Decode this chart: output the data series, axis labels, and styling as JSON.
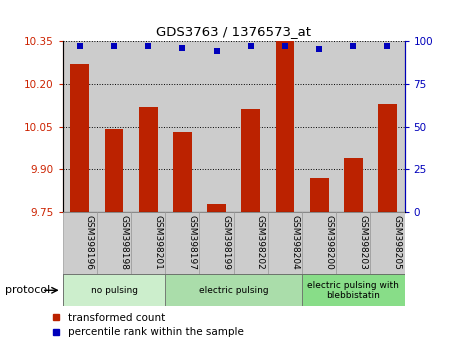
{
  "title": "GDS3763 / 1376573_at",
  "samples": [
    "GSM398196",
    "GSM398198",
    "GSM398201",
    "GSM398197",
    "GSM398199",
    "GSM398202",
    "GSM398204",
    "GSM398200",
    "GSM398203",
    "GSM398205"
  ],
  "red_values": [
    10.27,
    10.04,
    10.12,
    10.03,
    9.78,
    10.11,
    10.35,
    9.87,
    9.94,
    10.13
  ],
  "blue_values": [
    97,
    97,
    97,
    96,
    94,
    97,
    97,
    95,
    97,
    97
  ],
  "ylim_left": [
    9.75,
    10.35
  ],
  "ylim_right": [
    0,
    100
  ],
  "yticks_left": [
    9.75,
    9.9,
    10.05,
    10.2,
    10.35
  ],
  "yticks_right": [
    0,
    25,
    50,
    75,
    100
  ],
  "groups": [
    {
      "label": "no pulsing",
      "start": 0,
      "end": 3,
      "color": "#cceecc"
    },
    {
      "label": "electric pulsing",
      "start": 3,
      "end": 7,
      "color": "#aaddaa"
    },
    {
      "label": "electric pulsing with\nblebbistatin",
      "start": 7,
      "end": 10,
      "color": "#88dd88"
    }
  ],
  "bar_color": "#bb2200",
  "dot_color": "#0000bb",
  "tick_label_color_left": "#cc2200",
  "tick_label_color_right": "#0000cc",
  "cell_bg_color": "#cccccc",
  "protocol_label": "protocol",
  "legend_red": "transformed count",
  "legend_blue": "percentile rank within the sample"
}
